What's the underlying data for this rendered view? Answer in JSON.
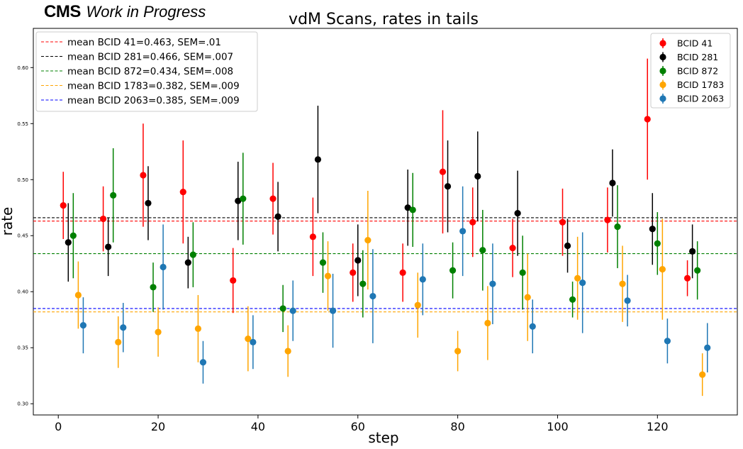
{
  "logo": {
    "bold": "CMS",
    "italic": "Work in Progress"
  },
  "chart_data": {
    "type": "scatter",
    "title": "vdM Scans, rates in tails",
    "xlabel": "step",
    "ylabel": "rate",
    "xlim": [
      -5,
      136
    ],
    "ylim": [
      0.29,
      0.635
    ],
    "x_ticks": [
      0,
      20,
      40,
      60,
      80,
      100,
      120
    ],
    "y_ticks": [
      0.3,
      0.35,
      0.4,
      0.45,
      0.5,
      0.55,
      0.6
    ],
    "y_tick_labels": [
      "0.30",
      "0.35",
      "0.40",
      "0.45",
      "0.50",
      "0.55",
      "0.60"
    ],
    "grid": false,
    "legend_lines_placement": "upper left",
    "legend_points_placement": "upper right",
    "series": [
      {
        "name": "BCID 41",
        "color": "#ff0000",
        "x": [
          1,
          9,
          17,
          25,
          35,
          43,
          51,
          59,
          69,
          77,
          83,
          91,
          101,
          110,
          118,
          126
        ],
        "y": [
          0.477,
          0.465,
          0.504,
          0.489,
          0.41,
          0.483,
          0.449,
          0.417,
          0.417,
          0.507,
          0.462,
          0.439,
          0.462,
          0.464,
          0.554,
          0.412
        ],
        "err": [
          0.03,
          0.029,
          0.046,
          0.046,
          0.029,
          0.032,
          0.035,
          0.026,
          0.026,
          0.055,
          0.031,
          0.026,
          0.03,
          0.029,
          0.054,
          0.016
        ]
      },
      {
        "name": "BCID 281",
        "color": "#000000",
        "x": [
          2,
          10,
          18,
          26,
          36,
          44,
          52,
          60,
          70,
          78,
          84,
          92,
          102,
          111,
          119,
          127
        ],
        "y": [
          0.444,
          0.44,
          0.479,
          0.426,
          0.481,
          0.467,
          0.518,
          0.428,
          0.475,
          0.494,
          0.503,
          0.47,
          0.441,
          0.497,
          0.456,
          0.436
        ],
        "err": [
          0.035,
          0.026,
          0.033,
          0.023,
          0.035,
          0.031,
          0.048,
          0.032,
          0.034,
          0.041,
          0.04,
          0.038,
          0.024,
          0.03,
          0.032,
          0.024
        ]
      },
      {
        "name": "BCID 872",
        "color": "#008000",
        "x": [
          3,
          11,
          19,
          27,
          37,
          45,
          53,
          61,
          71,
          79,
          85,
          93,
          103,
          112,
          120,
          128
        ],
        "y": [
          0.45,
          0.486,
          0.404,
          0.433,
          0.483,
          0.385,
          0.426,
          0.407,
          0.473,
          0.419,
          0.437,
          0.417,
          0.393,
          0.458,
          0.443,
          0.419
        ],
        "err": [
          0.038,
          0.042,
          0.022,
          0.029,
          0.041,
          0.021,
          0.027,
          0.03,
          0.033,
          0.025,
          0.036,
          0.033,
          0.016,
          0.037,
          0.028,
          0.026
        ]
      },
      {
        "name": "BCID 1783",
        "color": "#ffa500",
        "x": [
          4,
          12,
          20,
          28,
          38,
          46,
          54,
          62,
          72,
          80,
          86,
          94,
          104,
          113,
          121,
          129
        ],
        "y": [
          0.397,
          0.355,
          0.364,
          0.367,
          0.358,
          0.347,
          0.414,
          0.446,
          0.388,
          0.347,
          0.372,
          0.395,
          0.412,
          0.407,
          0.42,
          0.326
        ],
        "err": [
          0.03,
          0.023,
          0.022,
          0.03,
          0.029,
          0.023,
          0.031,
          0.044,
          0.029,
          0.018,
          0.033,
          0.039,
          0.037,
          0.034,
          0.045,
          0.019
        ]
      },
      {
        "name": "BCID 2063",
        "color": "#1f77b4",
        "x": [
          5,
          13,
          21,
          29,
          39,
          47,
          55,
          63,
          73,
          81,
          87,
          95,
          105,
          114,
          122,
          130
        ],
        "y": [
          0.37,
          0.368,
          0.422,
          0.337,
          0.355,
          0.383,
          0.383,
          0.396,
          0.411,
          0.454,
          0.407,
          0.369,
          0.408,
          0.392,
          0.356,
          0.35
        ],
        "err": [
          0.025,
          0.022,
          0.038,
          0.019,
          0.024,
          0.027,
          0.033,
          0.042,
          0.032,
          0.04,
          0.036,
          0.024,
          0.045,
          0.023,
          0.02,
          0.022
        ]
      }
    ],
    "mean_lines": [
      {
        "label": "mean BCID 41=0.463, SEM=.01",
        "value": 0.463,
        "color": "#ff0000"
      },
      {
        "label": "mean BCID 281=0.466, SEM=.007",
        "value": 0.466,
        "color": "#000000"
      },
      {
        "label": "mean BCID 872=0.434, SEM=.008",
        "value": 0.434,
        "color": "#008000"
      },
      {
        "label": "mean BCID 1783=0.382, SEM=.009",
        "value": 0.382,
        "color": "#ffa500"
      },
      {
        "label": "mean BCID 2063=0.385, SEM=.009",
        "value": 0.385,
        "color": "#0000ff"
      }
    ]
  }
}
